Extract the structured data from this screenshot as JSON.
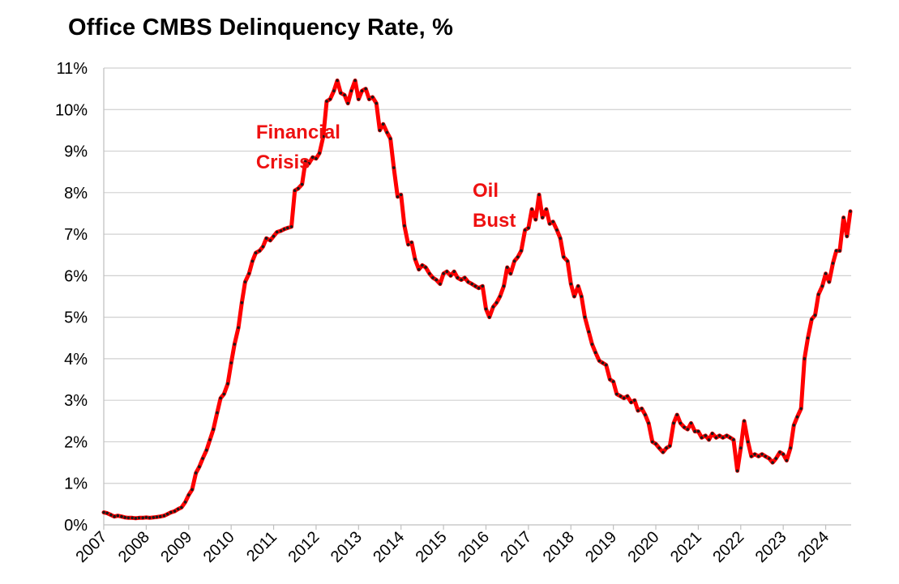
{
  "chart_data": {
    "type": "line",
    "title": "Office CMBS Delinquency Rate, %",
    "xlabel": "",
    "ylabel": "",
    "ylim": [
      0,
      11
    ],
    "xlim": [
      2007,
      2024.6
    ],
    "y_ticks": [
      "0%",
      "1%",
      "2%",
      "3%",
      "4%",
      "5%",
      "6%",
      "7%",
      "8%",
      "9%",
      "10%",
      "11%"
    ],
    "x_ticks": [
      "2007",
      "2008",
      "2009",
      "2010",
      "2011",
      "2012",
      "2013",
      "2014",
      "2015",
      "2016",
      "2017",
      "2018",
      "2019",
      "2020",
      "2021",
      "2022",
      "2023",
      "2024"
    ],
    "grid": true,
    "line_color": "#ff0000",
    "marker_color": "#1a1a1a",
    "annotations": [
      {
        "lines": [
          "Financial",
          "Crisis"
        ],
        "x": 2010.7,
        "y": 9.3
      },
      {
        "lines": [
          "Oil",
          "Bust"
        ],
        "x": 2015.8,
        "y": 7.9
      }
    ],
    "series": [
      {
        "values": [
          [
            2007.0,
            0.3
          ],
          [
            2007.08,
            0.28
          ],
          [
            2007.17,
            0.24
          ],
          [
            2007.25,
            0.2
          ],
          [
            2007.33,
            0.22
          ],
          [
            2007.42,
            0.2
          ],
          [
            2007.5,
            0.18
          ],
          [
            2007.58,
            0.17
          ],
          [
            2007.67,
            0.17
          ],
          [
            2007.75,
            0.16
          ],
          [
            2007.83,
            0.17
          ],
          [
            2007.92,
            0.17
          ],
          [
            2008.0,
            0.18
          ],
          [
            2008.08,
            0.17
          ],
          [
            2008.17,
            0.18
          ],
          [
            2008.25,
            0.19
          ],
          [
            2008.33,
            0.2
          ],
          [
            2008.42,
            0.22
          ],
          [
            2008.5,
            0.26
          ],
          [
            2008.58,
            0.3
          ],
          [
            2008.67,
            0.33
          ],
          [
            2008.75,
            0.38
          ],
          [
            2008.83,
            0.42
          ],
          [
            2008.92,
            0.55
          ],
          [
            2009.0,
            0.72
          ],
          [
            2009.08,
            0.85
          ],
          [
            2009.17,
            1.25
          ],
          [
            2009.25,
            1.4
          ],
          [
            2009.33,
            1.6
          ],
          [
            2009.42,
            1.8
          ],
          [
            2009.5,
            2.05
          ],
          [
            2009.58,
            2.3
          ],
          [
            2009.67,
            2.7
          ],
          [
            2009.75,
            3.05
          ],
          [
            2009.83,
            3.15
          ],
          [
            2009.92,
            3.4
          ],
          [
            2010.0,
            3.9
          ],
          [
            2010.08,
            4.35
          ],
          [
            2010.17,
            4.75
          ],
          [
            2010.25,
            5.35
          ],
          [
            2010.33,
            5.85
          ],
          [
            2010.42,
            6.05
          ],
          [
            2010.5,
            6.35
          ],
          [
            2010.58,
            6.55
          ],
          [
            2010.67,
            6.6
          ],
          [
            2010.75,
            6.7
          ],
          [
            2010.83,
            6.9
          ],
          [
            2010.92,
            6.85
          ],
          [
            2011.0,
            6.95
          ],
          [
            2011.08,
            7.05
          ],
          [
            2011.17,
            7.08
          ],
          [
            2011.25,
            7.12
          ],
          [
            2011.33,
            7.15
          ],
          [
            2011.42,
            7.18
          ],
          [
            2011.5,
            8.05
          ],
          [
            2011.58,
            8.1
          ],
          [
            2011.67,
            8.2
          ],
          [
            2011.75,
            8.75
          ],
          [
            2011.83,
            8.7
          ],
          [
            2011.92,
            8.85
          ],
          [
            2012.0,
            8.82
          ],
          [
            2012.08,
            8.95
          ],
          [
            2012.17,
            9.35
          ],
          [
            2012.25,
            10.2
          ],
          [
            2012.33,
            10.25
          ],
          [
            2012.42,
            10.45
          ],
          [
            2012.5,
            10.7
          ],
          [
            2012.58,
            10.4
          ],
          [
            2012.67,
            10.35
          ],
          [
            2012.75,
            10.15
          ],
          [
            2012.83,
            10.45
          ],
          [
            2012.92,
            10.7
          ],
          [
            2013.0,
            10.25
          ],
          [
            2013.08,
            10.45
          ],
          [
            2013.17,
            10.5
          ],
          [
            2013.25,
            10.25
          ],
          [
            2013.33,
            10.3
          ],
          [
            2013.42,
            10.15
          ],
          [
            2013.5,
            9.5
          ],
          [
            2013.58,
            9.65
          ],
          [
            2013.67,
            9.45
          ],
          [
            2013.75,
            9.3
          ],
          [
            2013.83,
            8.6
          ],
          [
            2013.92,
            7.9
          ],
          [
            2014.0,
            7.95
          ],
          [
            2014.08,
            7.2
          ],
          [
            2014.17,
            6.75
          ],
          [
            2014.25,
            6.8
          ],
          [
            2014.33,
            6.4
          ],
          [
            2014.42,
            6.15
          ],
          [
            2014.5,
            6.25
          ],
          [
            2014.58,
            6.2
          ],
          [
            2014.67,
            6.05
          ],
          [
            2014.75,
            5.95
          ],
          [
            2014.83,
            5.9
          ],
          [
            2014.92,
            5.8
          ],
          [
            2015.0,
            6.05
          ],
          [
            2015.08,
            6.1
          ],
          [
            2015.17,
            6.0
          ],
          [
            2015.25,
            6.1
          ],
          [
            2015.33,
            5.95
          ],
          [
            2015.42,
            5.9
          ],
          [
            2015.5,
            5.95
          ],
          [
            2015.58,
            5.85
          ],
          [
            2015.67,
            5.8
          ],
          [
            2015.75,
            5.75
          ],
          [
            2015.83,
            5.7
          ],
          [
            2015.92,
            5.75
          ],
          [
            2016.0,
            5.2
          ],
          [
            2016.08,
            5.0
          ],
          [
            2016.17,
            5.25
          ],
          [
            2016.25,
            5.35
          ],
          [
            2016.33,
            5.5
          ],
          [
            2016.42,
            5.75
          ],
          [
            2016.5,
            6.2
          ],
          [
            2016.58,
            6.05
          ],
          [
            2016.67,
            6.35
          ],
          [
            2016.75,
            6.45
          ],
          [
            2016.83,
            6.6
          ],
          [
            2016.92,
            7.1
          ],
          [
            2017.0,
            7.15
          ],
          [
            2017.08,
            7.6
          ],
          [
            2017.17,
            7.35
          ],
          [
            2017.25,
            7.95
          ],
          [
            2017.33,
            7.4
          ],
          [
            2017.42,
            7.6
          ],
          [
            2017.5,
            7.25
          ],
          [
            2017.58,
            7.3
          ],
          [
            2017.67,
            7.1
          ],
          [
            2017.75,
            6.9
          ],
          [
            2017.83,
            6.45
          ],
          [
            2017.92,
            6.35
          ],
          [
            2018.0,
            5.8
          ],
          [
            2018.08,
            5.5
          ],
          [
            2018.17,
            5.75
          ],
          [
            2018.25,
            5.5
          ],
          [
            2018.33,
            5.0
          ],
          [
            2018.42,
            4.65
          ],
          [
            2018.5,
            4.35
          ],
          [
            2018.58,
            4.15
          ],
          [
            2018.67,
            3.95
          ],
          [
            2018.75,
            3.9
          ],
          [
            2018.83,
            3.85
          ],
          [
            2018.92,
            3.5
          ],
          [
            2019.0,
            3.45
          ],
          [
            2019.08,
            3.15
          ],
          [
            2019.17,
            3.1
          ],
          [
            2019.25,
            3.05
          ],
          [
            2019.33,
            3.1
          ],
          [
            2019.42,
            2.95
          ],
          [
            2019.5,
            3.0
          ],
          [
            2019.58,
            2.75
          ],
          [
            2019.67,
            2.8
          ],
          [
            2019.75,
            2.65
          ],
          [
            2019.83,
            2.45
          ],
          [
            2019.92,
            2.0
          ],
          [
            2020.0,
            1.95
          ],
          [
            2020.08,
            1.85
          ],
          [
            2020.17,
            1.75
          ],
          [
            2020.25,
            1.85
          ],
          [
            2020.33,
            1.9
          ],
          [
            2020.42,
            2.45
          ],
          [
            2020.5,
            2.65
          ],
          [
            2020.58,
            2.45
          ],
          [
            2020.67,
            2.35
          ],
          [
            2020.75,
            2.3
          ],
          [
            2020.83,
            2.45
          ],
          [
            2020.92,
            2.25
          ],
          [
            2021.0,
            2.25
          ],
          [
            2021.08,
            2.1
          ],
          [
            2021.17,
            2.15
          ],
          [
            2021.25,
            2.05
          ],
          [
            2021.33,
            2.2
          ],
          [
            2021.42,
            2.1
          ],
          [
            2021.5,
            2.15
          ],
          [
            2021.58,
            2.1
          ],
          [
            2021.67,
            2.15
          ],
          [
            2021.75,
            2.1
          ],
          [
            2021.83,
            2.05
          ],
          [
            2021.92,
            1.3
          ],
          [
            2022.0,
            1.85
          ],
          [
            2022.08,
            2.5
          ],
          [
            2022.17,
            2.0
          ],
          [
            2022.25,
            1.65
          ],
          [
            2022.33,
            1.7
          ],
          [
            2022.42,
            1.65
          ],
          [
            2022.5,
            1.7
          ],
          [
            2022.58,
            1.65
          ],
          [
            2022.67,
            1.6
          ],
          [
            2022.75,
            1.5
          ],
          [
            2022.83,
            1.6
          ],
          [
            2022.92,
            1.75
          ],
          [
            2023.0,
            1.7
          ],
          [
            2023.08,
            1.55
          ],
          [
            2023.17,
            1.85
          ],
          [
            2023.25,
            2.4
          ],
          [
            2023.33,
            2.6
          ],
          [
            2023.42,
            2.8
          ],
          [
            2023.5,
            4.0
          ],
          [
            2023.58,
            4.5
          ],
          [
            2023.67,
            4.95
          ],
          [
            2023.75,
            5.05
          ],
          [
            2023.83,
            5.55
          ],
          [
            2023.92,
            5.75
          ],
          [
            2024.0,
            6.05
          ],
          [
            2024.08,
            5.85
          ],
          [
            2024.17,
            6.3
          ],
          [
            2024.25,
            6.6
          ],
          [
            2024.33,
            6.6
          ],
          [
            2024.42,
            7.4
          ],
          [
            2024.5,
            6.95
          ],
          [
            2024.58,
            7.55
          ]
        ]
      }
    ]
  }
}
